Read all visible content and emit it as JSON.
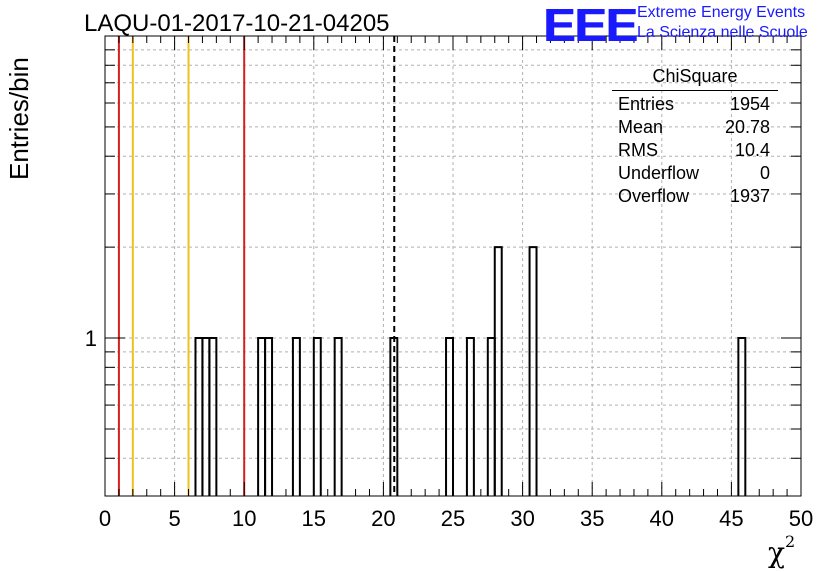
{
  "header": {
    "run_title": "LAQU-01-2017-10-21-04205"
  },
  "logo": {
    "mark": "EEE",
    "line1": "Extreme Energy Events",
    "line2": "La Scienza nelle Scuole",
    "color": "#1a1aff"
  },
  "axes": {
    "ylabel": "Entries/bin",
    "xlabel_base": "χ",
    "xlabel_sup": "2"
  },
  "stats_box": {
    "title": "ChiSquare",
    "rows": [
      {
        "label": "Entries",
        "value": "1954"
      },
      {
        "label": "Mean",
        "value": "20.78"
      },
      {
        "label": "RMS",
        "value": "10.4"
      },
      {
        "label": "Underflow",
        "value": "0"
      },
      {
        "label": "Overflow",
        "value": "1937"
      }
    ]
  },
  "chart_data": {
    "type": "bar",
    "histogram": true,
    "xlim": [
      0,
      50
    ],
    "ylim_log": [
      0.3,
      10
    ],
    "log_y": true,
    "grid": true,
    "x_ticks": [
      0,
      5,
      10,
      15,
      20,
      25,
      30,
      35,
      40,
      45,
      50
    ],
    "x_tick_labels": [
      "0",
      "5",
      "10",
      "15",
      "20",
      "25",
      "30",
      "35",
      "40",
      "45",
      "50"
    ],
    "y_tick_labels": [
      {
        "value": 1,
        "label": "1"
      }
    ],
    "bin_width": 0.5,
    "bins": [
      {
        "x0": 6.5,
        "x1": 7.0,
        "count": 1
      },
      {
        "x0": 7.0,
        "x1": 7.5,
        "count": 1
      },
      {
        "x0": 7.5,
        "x1": 8.0,
        "count": 1
      },
      {
        "x0": 11.0,
        "x1": 11.5,
        "count": 1
      },
      {
        "x0": 11.5,
        "x1": 12.0,
        "count": 1
      },
      {
        "x0": 13.5,
        "x1": 14.0,
        "count": 1
      },
      {
        "x0": 15.0,
        "x1": 15.5,
        "count": 1
      },
      {
        "x0": 16.5,
        "x1": 17.0,
        "count": 1
      },
      {
        "x0": 20.5,
        "x1": 21.0,
        "count": 1
      },
      {
        "x0": 24.5,
        "x1": 25.0,
        "count": 1
      },
      {
        "x0": 26.0,
        "x1": 26.5,
        "count": 1
      },
      {
        "x0": 27.5,
        "x1": 28.0,
        "count": 1
      },
      {
        "x0": 28.0,
        "x1": 28.5,
        "count": 2
      },
      {
        "x0": 30.5,
        "x1": 31.0,
        "count": 2
      },
      {
        "x0": 45.5,
        "x1": 46.0,
        "count": 1
      }
    ],
    "vertical_lines": [
      {
        "x": 1.0,
        "color": "#d42020",
        "style": "solid"
      },
      {
        "x": 2.0,
        "color": "#f0c020",
        "style": "solid"
      },
      {
        "x": 6.0,
        "color": "#f0c020",
        "style": "solid"
      },
      {
        "x": 10.0,
        "color": "#d42020",
        "style": "solid"
      },
      {
        "x": 20.78,
        "color": "#000000",
        "style": "dashed"
      }
    ]
  }
}
